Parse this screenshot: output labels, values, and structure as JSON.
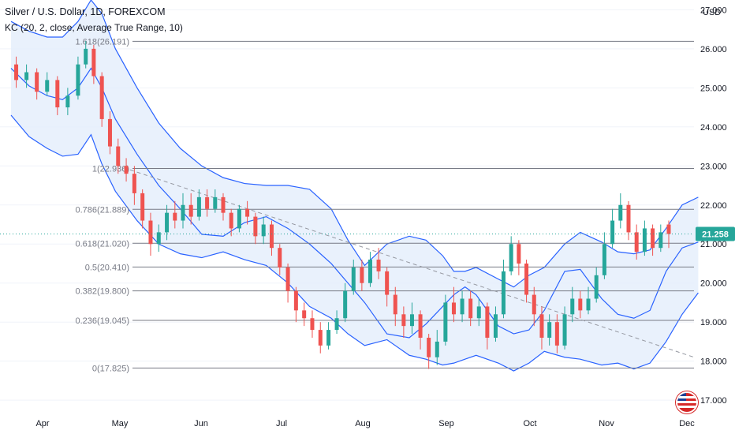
{
  "header": {
    "title": "Silver / U.S. Dollar, 1D, FOREXCOM",
    "indicator": "KC (20, 2, close, Average True Range, 10)"
  },
  "colors": {
    "bullish": "#26a69a",
    "bearish": "#ef5350",
    "channel": "#2962ff",
    "channel_fill": "#e3eefb",
    "fib_line": "#787b86",
    "trendline": "#9598a1",
    "price_tag": "#26a69a",
    "axis_text": "#131722",
    "price_dotted": "#26a69a"
  },
  "chart_data": {
    "type": "candlestick",
    "symbol": "Silver / U.S. Dollar",
    "timeframe": "1D",
    "exchange": "FOREXCOM",
    "currency": "USD",
    "y_ticks": [
      "17.000",
      "18.000",
      "19.000",
      "20.000",
      "21.000",
      "22.000",
      "23.000",
      "24.000",
      "25.000",
      "26.000",
      "27.000"
    ],
    "ylim": [
      16.7,
      27.25
    ],
    "x_ticks": [
      "Apr",
      "May",
      "Jun",
      "Jul",
      "Aug",
      "Sep",
      "Oct",
      "Nov",
      "Dec"
    ],
    "last_price": "21.258",
    "fib_levels": [
      {
        "label": "1.618(26.191)",
        "value": 26.191
      },
      {
        "label": "1(22.936)",
        "value": 22.936
      },
      {
        "label": "0.786(21.889)",
        "value": 21.889
      },
      {
        "label": "0.618(21.020)",
        "value": 21.02
      },
      {
        "label": "0.5(20.410)",
        "value": 20.41
      },
      {
        "label": "0.382(19.800)",
        "value": 19.8
      },
      {
        "label": "0.236(19.045)",
        "value": 19.045
      },
      {
        "label": "0(17.825)",
        "value": 17.825
      }
    ],
    "trendline": {
      "from": {
        "month_index": 1.05,
        "value": 22.9
      },
      "to": {
        "month_index": 8.25,
        "value": 18.1
      }
    },
    "keltner_mid": [
      [
        0,
        25.5
      ],
      [
        0.35,
        25.05
      ],
      [
        0.7,
        24.8
      ],
      [
        1.0,
        24.7
      ],
      [
        1.3,
        25.0
      ],
      [
        1.55,
        25.5
      ],
      [
        1.75,
        25.0
      ],
      [
        2.0,
        24.2
      ],
      [
        2.4,
        23.3
      ],
      [
        2.8,
        22.5
      ],
      [
        3.2,
        21.9
      ],
      [
        3.6,
        21.25
      ],
      [
        4.0,
        21.2
      ],
      [
        4.4,
        21.55
      ],
      [
        4.8,
        21.7
      ],
      [
        5.2,
        21.4
      ],
      [
        5.6,
        21.0
      ],
      [
        6.0,
        20.5
      ],
      [
        6.3,
        20.0
      ],
      [
        6.6,
        19.5
      ],
      [
        7.0,
        18.7
      ],
      [
        7.4,
        18.6
      ],
      [
        7.7,
        18.95
      ],
      [
        8.0,
        19.4
      ],
      [
        8.2,
        19.7
      ],
      [
        8.4,
        19.9
      ],
      [
        8.6,
        19.7
      ],
      [
        9.0,
        18.9
      ],
      [
        9.3,
        18.7
      ],
      [
        9.6,
        18.8
      ],
      [
        9.9,
        19.3
      ],
      [
        10.3,
        20.3
      ],
      [
        10.6,
        20.35
      ],
      [
        11.0,
        19.6
      ],
      [
        11.3,
        19.2
      ],
      [
        11.6,
        19.1
      ],
      [
        11.9,
        19.3
      ],
      [
        12.2,
        20.3
      ],
      [
        12.5,
        20.9
      ],
      [
        12.8,
        21.05
      ]
    ],
    "keltner_upper": [
      [
        0,
        26.7
      ],
      [
        0.35,
        26.45
      ],
      [
        0.7,
        26.3
      ],
      [
        1.0,
        26.3
      ],
      [
        1.3,
        26.7
      ],
      [
        1.55,
        27.25
      ],
      [
        1.75,
        26.9
      ],
      [
        2.0,
        26.0
      ],
      [
        2.4,
        25.0
      ],
      [
        2.8,
        24.1
      ],
      [
        3.2,
        23.45
      ],
      [
        3.6,
        23.0
      ],
      [
        4.0,
        22.7
      ],
      [
        4.4,
        22.55
      ],
      [
        4.8,
        22.5
      ],
      [
        5.2,
        22.5
      ],
      [
        5.6,
        22.4
      ],
      [
        6.0,
        21.9
      ],
      [
        6.3,
        21.1
      ],
      [
        6.6,
        20.45
      ],
      [
        7.0,
        21.0
      ],
      [
        7.4,
        21.2
      ],
      [
        7.7,
        21.1
      ],
      [
        8.0,
        20.7
      ],
      [
        8.2,
        20.3
      ],
      [
        8.4,
        20.3
      ],
      [
        8.6,
        20.4
      ],
      [
        9.0,
        20.1
      ],
      [
        9.3,
        19.9
      ],
      [
        9.6,
        20.2
      ],
      [
        9.9,
        20.4
      ],
      [
        10.3,
        21.0
      ],
      [
        10.6,
        21.3
      ],
      [
        11.0,
        21.05
      ],
      [
        11.3,
        20.8
      ],
      [
        11.6,
        20.75
      ],
      [
        11.9,
        20.85
      ],
      [
        12.2,
        21.4
      ],
      [
        12.5,
        22.0
      ],
      [
        12.8,
        22.2
      ]
    ],
    "keltner_lower": [
      [
        0,
        24.3
      ],
      [
        0.35,
        23.75
      ],
      [
        0.7,
        23.45
      ],
      [
        1.0,
        23.25
      ],
      [
        1.3,
        23.3
      ],
      [
        1.55,
        23.8
      ],
      [
        1.75,
        23.05
      ],
      [
        2.0,
        22.35
      ],
      [
        2.4,
        21.6
      ],
      [
        2.8,
        21.0
      ],
      [
        3.2,
        20.75
      ],
      [
        3.6,
        20.65
      ],
      [
        4.0,
        20.8
      ],
      [
        4.4,
        20.6
      ],
      [
        4.8,
        20.45
      ],
      [
        5.2,
        20.0
      ],
      [
        5.6,
        19.4
      ],
      [
        6.0,
        19.1
      ],
      [
        6.3,
        18.7
      ],
      [
        6.6,
        18.4
      ],
      [
        7.0,
        18.55
      ],
      [
        7.4,
        18.15
      ],
      [
        7.7,
        18.05
      ],
      [
        8.0,
        17.9
      ],
      [
        8.2,
        17.95
      ],
      [
        8.4,
        18.05
      ],
      [
        8.6,
        18.15
      ],
      [
        9.0,
        17.95
      ],
      [
        9.3,
        17.75
      ],
      [
        9.6,
        17.95
      ],
      [
        9.9,
        18.25
      ],
      [
        10.3,
        18.1
      ],
      [
        10.6,
        18.05
      ],
      [
        11.0,
        17.9
      ],
      [
        11.3,
        17.95
      ],
      [
        11.6,
        17.8
      ],
      [
        11.9,
        17.95
      ],
      [
        12.2,
        18.5
      ],
      [
        12.5,
        19.2
      ],
      [
        12.8,
        19.75
      ]
    ],
    "candles": [
      [
        0.1,
        25.6,
        25.2,
        25.8,
        25.0
      ],
      [
        0.3,
        25.2,
        25.4,
        25.6,
        25.0
      ],
      [
        0.5,
        25.4,
        24.9,
        25.5,
        24.7
      ],
      [
        0.7,
        24.9,
        25.2,
        25.4,
        24.8
      ],
      [
        0.9,
        25.2,
        24.5,
        25.3,
        24.3
      ],
      [
        1.1,
        24.5,
        24.8,
        25.0,
        24.3
      ],
      [
        1.3,
        24.8,
        25.6,
        25.8,
        24.7
      ],
      [
        1.45,
        25.6,
        26.0,
        26.2,
        25.5
      ],
      [
        1.6,
        26.0,
        25.3,
        26.1,
        25.1
      ],
      [
        1.75,
        25.3,
        24.2,
        25.4,
        24.0
      ],
      [
        1.9,
        24.2,
        23.5,
        24.4,
        23.3
      ],
      [
        2.05,
        23.5,
        23.0,
        23.7,
        22.8
      ],
      [
        2.2,
        23.0,
        22.8,
        23.2,
        22.6
      ],
      [
        2.35,
        22.8,
        22.3,
        23.0,
        22.0
      ],
      [
        2.5,
        22.3,
        21.6,
        22.4,
        21.4
      ],
      [
        2.65,
        21.6,
        21.0,
        21.8,
        20.7
      ],
      [
        2.8,
        21.0,
        21.3,
        21.5,
        20.8
      ],
      [
        2.95,
        21.3,
        21.8,
        22.0,
        21.1
      ],
      [
        3.1,
        21.8,
        21.6,
        22.1,
        21.4
      ],
      [
        3.25,
        21.6,
        22.0,
        22.3,
        21.4
      ],
      [
        3.4,
        22.0,
        21.7,
        22.3,
        21.5
      ],
      [
        3.55,
        21.7,
        22.2,
        22.4,
        21.6
      ],
      [
        3.7,
        22.2,
        21.9,
        22.4,
        21.7
      ],
      [
        3.85,
        21.9,
        22.2,
        22.4,
        21.8
      ],
      [
        4.0,
        22.2,
        21.8,
        22.3,
        21.6
      ],
      [
        4.15,
        21.8,
        21.4,
        21.9,
        21.2
      ],
      [
        4.3,
        21.4,
        21.9,
        22.0,
        21.3
      ],
      [
        4.45,
        21.9,
        21.7,
        22.1,
        21.5
      ],
      [
        4.6,
        21.7,
        21.2,
        21.8,
        21.0
      ],
      [
        4.75,
        21.2,
        21.5,
        21.7,
        21.0
      ],
      [
        4.9,
        21.5,
        20.9,
        21.6,
        20.7
      ],
      [
        5.05,
        20.9,
        20.4,
        21.0,
        20.2
      ],
      [
        5.2,
        20.4,
        19.8,
        20.5,
        19.5
      ],
      [
        5.35,
        19.8,
        19.3,
        19.9,
        19.0
      ],
      [
        5.5,
        19.3,
        19.1,
        19.5,
        18.9
      ],
      [
        5.65,
        19.1,
        18.8,
        19.3,
        18.6
      ],
      [
        5.8,
        18.8,
        18.4,
        19.0,
        18.2
      ],
      [
        5.95,
        18.4,
        18.8,
        19.0,
        18.3
      ],
      [
        6.1,
        18.8,
        19.1,
        19.3,
        18.7
      ],
      [
        6.25,
        19.1,
        19.8,
        20.0,
        19.0
      ],
      [
        6.4,
        19.8,
        20.4,
        20.6,
        19.7
      ],
      [
        6.55,
        20.4,
        20.0,
        20.6,
        19.8
      ],
      [
        6.7,
        20.0,
        20.6,
        20.8,
        19.9
      ],
      [
        6.85,
        20.6,
        20.3,
        20.9,
        20.1
      ],
      [
        7.0,
        20.3,
        19.7,
        20.4,
        19.4
      ],
      [
        7.15,
        19.7,
        19.2,
        19.9,
        18.9
      ],
      [
        7.3,
        19.2,
        18.9,
        19.4,
        18.6
      ],
      [
        7.45,
        18.9,
        19.2,
        19.5,
        18.7
      ],
      [
        7.6,
        19.2,
        18.6,
        19.3,
        18.3
      ],
      [
        7.75,
        18.6,
        18.1,
        18.7,
        17.8
      ],
      [
        7.9,
        18.1,
        18.5,
        18.8,
        17.9
      ],
      [
        8.05,
        18.5,
        19.5,
        19.7,
        18.4
      ],
      [
        8.2,
        19.5,
        19.2,
        19.9,
        19.0
      ],
      [
        8.35,
        19.2,
        19.6,
        19.8,
        19.0
      ],
      [
        8.5,
        19.6,
        19.1,
        19.8,
        18.9
      ],
      [
        8.65,
        19.1,
        19.4,
        19.6,
        18.9
      ],
      [
        8.8,
        19.4,
        18.6,
        19.5,
        18.3
      ],
      [
        8.95,
        18.6,
        19.2,
        19.4,
        18.5
      ],
      [
        9.1,
        19.2,
        20.3,
        20.6,
        19.1
      ],
      [
        9.25,
        20.3,
        21.0,
        21.2,
        20.2
      ],
      [
        9.4,
        21.0,
        20.5,
        21.1,
        20.2
      ],
      [
        9.55,
        20.5,
        19.7,
        20.6,
        19.5
      ],
      [
        9.7,
        19.7,
        19.2,
        19.9,
        18.9
      ],
      [
        9.85,
        19.2,
        18.6,
        19.4,
        18.3
      ],
      [
        10.0,
        18.6,
        19.0,
        19.2,
        18.4
      ],
      [
        10.15,
        19.0,
        18.4,
        19.2,
        18.2
      ],
      [
        10.3,
        18.4,
        19.2,
        19.4,
        18.3
      ],
      [
        10.45,
        19.2,
        19.6,
        19.9,
        19.0
      ],
      [
        10.6,
        19.6,
        19.3,
        19.8,
        19.1
      ],
      [
        10.75,
        19.3,
        19.6,
        19.9,
        19.2
      ],
      [
        10.9,
        19.6,
        20.2,
        20.4,
        19.5
      ],
      [
        11.05,
        20.2,
        21.0,
        21.3,
        20.1
      ],
      [
        11.2,
        21.0,
        21.6,
        21.9,
        20.9
      ],
      [
        11.35,
        21.6,
        22.0,
        22.3,
        21.4
      ],
      [
        11.5,
        22.0,
        21.3,
        22.1,
        21.1
      ],
      [
        11.65,
        21.3,
        20.8,
        21.5,
        20.6
      ],
      [
        11.8,
        20.8,
        21.4,
        21.6,
        20.7
      ],
      [
        11.95,
        21.4,
        20.9,
        21.5,
        20.7
      ],
      [
        12.1,
        20.9,
        21.3,
        21.5,
        20.8
      ],
      [
        12.25,
        21.5,
        21.258,
        21.6,
        20.9
      ]
    ],
    "month_scale": [
      "Apr",
      "May",
      "Jun",
      "Jul",
      "Aug",
      "Sep",
      "Oct",
      "Nov",
      "Dec"
    ]
  }
}
